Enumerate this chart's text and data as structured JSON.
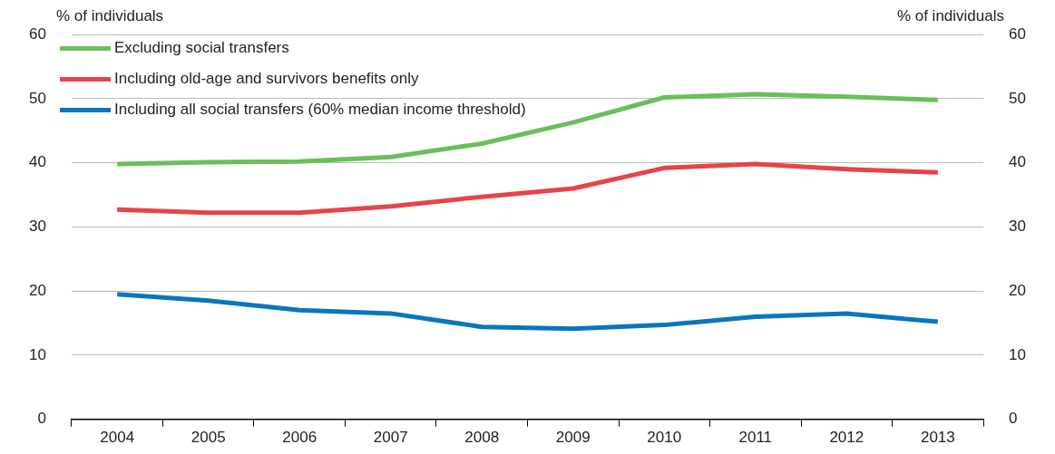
{
  "chart_data": {
    "type": "line",
    "ylabel": "% of individuals",
    "y2label": "% of individuals",
    "categories": [
      "2004",
      "2005",
      "2006",
      "2007",
      "2008",
      "2009",
      "2010",
      "2011",
      "2012",
      "2013"
    ],
    "series": [
      {
        "name": "Excluding social transfers",
        "color": "#6abf5a",
        "values": [
          39.8,
          40.1,
          40.2,
          40.9,
          43.0,
          46.3,
          50.2,
          50.7,
          50.3,
          49.8
        ]
      },
      {
        "name": "Including old-age and survivors benefits only",
        "color": "#e8434a",
        "values": [
          32.7,
          32.2,
          32.2,
          33.2,
          34.7,
          36.0,
          39.2,
          39.8,
          39.0,
          38.5
        ]
      },
      {
        "name": "Including all social transfers (60% median income threshold)",
        "color": "#0a76bb",
        "values": [
          19.5,
          18.5,
          17.0,
          16.5,
          14.4,
          14.1,
          14.7,
          16.0,
          16.5,
          15.2
        ]
      }
    ],
    "ylim": [
      0,
      60
    ],
    "yticks": [
      0,
      10,
      20,
      30,
      40,
      50,
      60
    ],
    "y2lim": [
      0,
      60
    ],
    "y2ticks": [
      0,
      10,
      20,
      30,
      40,
      50,
      60
    ],
    "grid": "y",
    "legend": "top left",
    "marker": "none",
    "line_style": "solid"
  }
}
